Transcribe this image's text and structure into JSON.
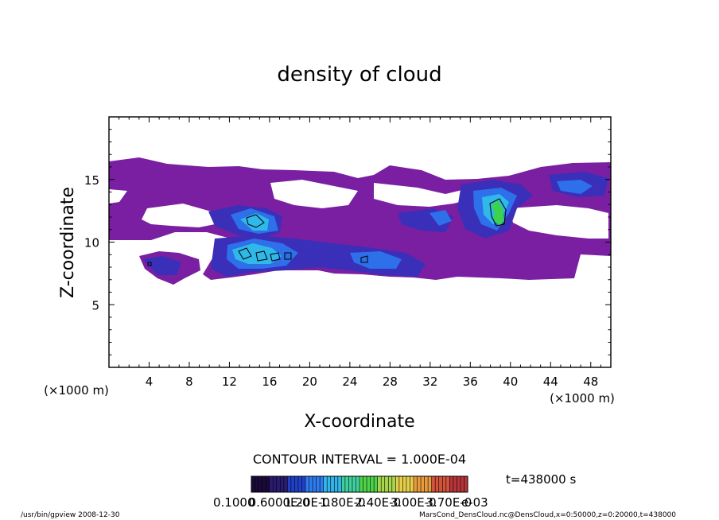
{
  "chart_data": {
    "type": "heatmap",
    "title": "density of cloud",
    "xlabel": "X-coordinate",
    "ylabel": "Z-coordinate",
    "x_unit_label": "(×1000 m)",
    "y_unit_label": "(×1000 m)",
    "xlim": [
      0,
      50
    ],
    "ylim": [
      0,
      20
    ],
    "x_ticks": [
      4,
      8,
      12,
      16,
      20,
      24,
      28,
      32,
      36,
      40,
      44,
      48
    ],
    "y_ticks": [
      5,
      10,
      15
    ],
    "contour_interval_label": "CONTOUR INTERVAL = 1.000E-04",
    "time_label": "t=438000 s",
    "colorbar_labels": [
      "0.1000",
      "0.6000E-0",
      "1.20E-0",
      "1.80E-0",
      "2.40E-0",
      "3.00E-0",
      "3.70E-0",
      "e-03"
    ],
    "colorbar_colors": [
      "#1a0a3a",
      "#2a1b70",
      "#2140c8",
      "#2e7cf0",
      "#31b6ec",
      "#3fcf9f",
      "#4ed24a",
      "#a6d64b",
      "#e5cf4a",
      "#e89a3c",
      "#d2543a",
      "#b7343a"
    ],
    "level_colors": {
      "low": "#7a1fa2",
      "mid": "#3a2fb8",
      "high": "#2d70ea",
      "higher": "#2fb8e8",
      "peak": "#46d08a",
      "top": "#3dd24b"
    },
    "footer_left": "/usr/bin/gpview   2008-12-30",
    "footer_right": "MarsCond_DensCloud.nc@DensCloud,x=0:50000,z=0:20000,t=438000"
  }
}
